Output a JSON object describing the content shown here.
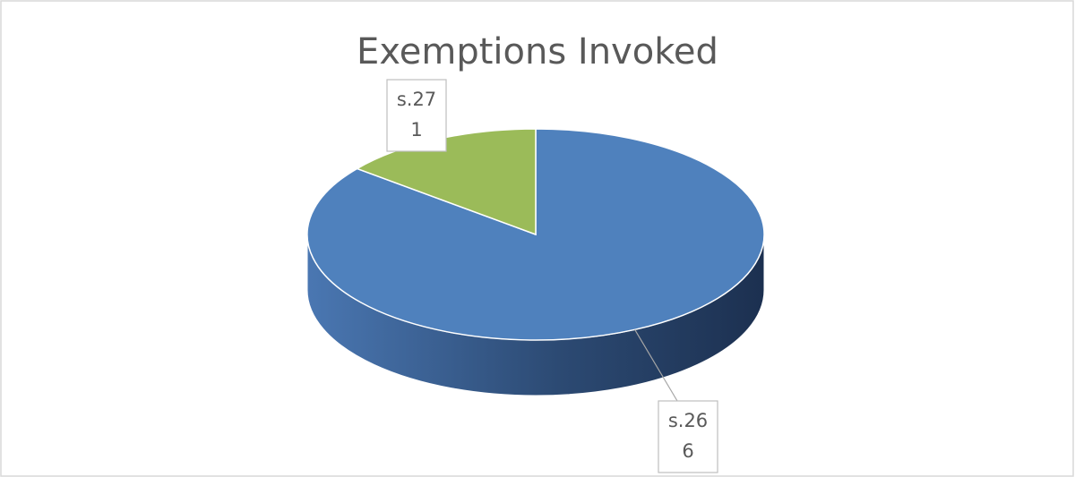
{
  "chart_data": {
    "type": "pie3d",
    "title": "Exemptions Invoked",
    "categories": [
      "s.26",
      "s.27"
    ],
    "values": [
      6,
      1
    ],
    "colors": [
      "#4f81bd",
      "#9bbb59"
    ]
  }
}
